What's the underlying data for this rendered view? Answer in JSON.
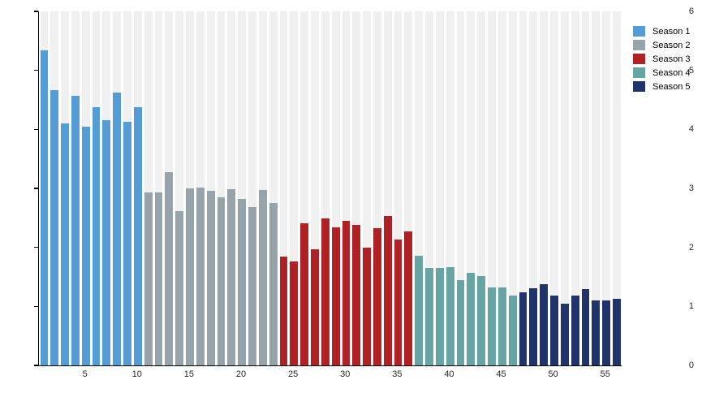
{
  "chart_data": {
    "type": "bar",
    "title": "",
    "xlabel": "",
    "ylabel": "",
    "ylim": [
      0,
      6
    ],
    "yticks": [
      0,
      1,
      2,
      3,
      4,
      5,
      6
    ],
    "xticks": [
      5,
      10,
      15,
      20,
      25,
      30,
      35,
      40,
      45,
      50,
      55
    ],
    "x_range": [
      1,
      56
    ],
    "grid": "off",
    "background_stripes": true,
    "stripe_color": "#F0F0F0",
    "legend_position": "top-right",
    "series": [
      {
        "name": "Season 1",
        "color": "#549CD6",
        "start_x": 1,
        "values": [
          5.34,
          4.66,
          4.1,
          4.57,
          4.05,
          4.37,
          4.16,
          4.63,
          4.13,
          4.38
        ]
      },
      {
        "name": "Season 2",
        "color": "#96A3AB",
        "start_x": 11,
        "values": [
          2.93,
          2.93,
          3.27,
          2.61,
          3.0,
          3.02,
          2.96,
          2.85,
          2.98,
          2.82,
          2.69,
          2.97,
          2.75
        ]
      },
      {
        "name": "Season 3",
        "color": "#B02126",
        "start_x": 24,
        "values": [
          1.84,
          1.76,
          2.41,
          1.97,
          2.49,
          2.34,
          2.45,
          2.38,
          1.99,
          2.32,
          2.53,
          2.13,
          2.27
        ]
      },
      {
        "name": "Season 4",
        "color": "#66A5A4",
        "start_x": 37,
        "values": [
          1.86,
          1.65,
          1.65,
          1.66,
          1.45,
          1.57,
          1.51,
          1.32,
          1.32,
          1.19
        ]
      },
      {
        "name": "Season 5",
        "color": "#20336B",
        "start_x": 47,
        "values": [
          1.24,
          1.31,
          1.37,
          1.19,
          1.04,
          1.18,
          1.29,
          1.1,
          1.1,
          1.13
        ]
      }
    ]
  }
}
